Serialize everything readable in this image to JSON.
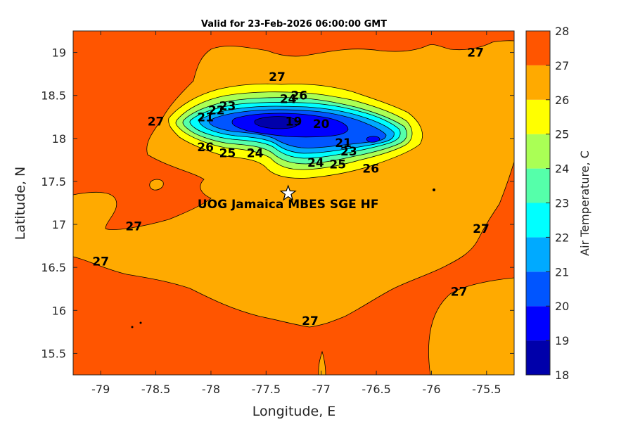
{
  "chart_data": {
    "type": "heatmap",
    "subtype": "filled-contour map",
    "title": "Valid for 23-Feb-2026 06:00:00 GMT",
    "xlabel": "Longitude, E",
    "ylabel": "Latitude, N",
    "xlim": [
      -79.25,
      -75.25
    ],
    "ylim": [
      15.25,
      19.25
    ],
    "x_ticks": [
      -79,
      -78.5,
      -78,
      -77.5,
      -77,
      -76.5,
      -76,
      -75.5
    ],
    "x_tick_labels": [
      "-79",
      "-78.5",
      "-78",
      "-77.5",
      "-77",
      "-76.5",
      "-76",
      "-75.5"
    ],
    "y_ticks": [
      15.5,
      16,
      16.5,
      17,
      17.5,
      18,
      18.5,
      19
    ],
    "y_tick_labels": [
      "15.5",
      "16",
      "16.5",
      "17",
      "17.5",
      "18",
      "18.5",
      "19"
    ],
    "colorbar": {
      "label": "Air Temperature, C",
      "levels": [
        18,
        19,
        20,
        21,
        22,
        23,
        24,
        25,
        26,
        27,
        28
      ],
      "tick_labels": [
        "18",
        "19",
        "20",
        "21",
        "22",
        "23",
        "24",
        "25",
        "26",
        "27",
        "28"
      ],
      "colors": [
        "#0000aa",
        "#0000ff",
        "#0055ff",
        "#00aaff",
        "#00ffff",
        "#55ffaa",
        "#aaff55",
        "#ffff00",
        "#ffaa00",
        "#ff5500",
        "#ff0000"
      ]
    },
    "station": {
      "label": "UOG Jamaica MBES SGE HF",
      "lon": -77.3,
      "lat": 17.36,
      "marker": "star"
    },
    "contour_labels": [
      {
        "text": "27",
        "lon": -77.4,
        "lat": 18.72
      },
      {
        "text": "27",
        "lon": -75.6,
        "lat": 19.0
      },
      {
        "text": "27",
        "lon": -78.5,
        "lat": 18.2
      },
      {
        "text": "27",
        "lon": -78.7,
        "lat": 16.98
      },
      {
        "text": "27",
        "lon": -79.0,
        "lat": 16.57
      },
      {
        "text": "27",
        "lon": -75.55,
        "lat": 16.95
      },
      {
        "text": "27",
        "lon": -75.75,
        "lat": 16.22
      },
      {
        "text": "27",
        "lon": -77.1,
        "lat": 15.88
      },
      {
        "text": "26",
        "lon": -78.05,
        "lat": 17.9
      },
      {
        "text": "26",
        "lon": -77.2,
        "lat": 18.5
      },
      {
        "text": "26",
        "lon": -76.55,
        "lat": 17.65
      },
      {
        "text": "25",
        "lon": -77.85,
        "lat": 17.83
      },
      {
        "text": "25",
        "lon": -76.85,
        "lat": 17.7
      },
      {
        "text": "24",
        "lon": -77.6,
        "lat": 17.83
      },
      {
        "text": "24",
        "lon": -77.3,
        "lat": 18.46
      },
      {
        "text": "24",
        "lon": -77.05,
        "lat": 17.72
      },
      {
        "text": "23",
        "lon": -77.85,
        "lat": 18.38
      },
      {
        "text": "23",
        "lon": -76.75,
        "lat": 17.85
      },
      {
        "text": "22",
        "lon": -77.95,
        "lat": 18.33
      },
      {
        "text": "21",
        "lon": -78.05,
        "lat": 18.25
      },
      {
        "text": "21",
        "lon": -76.8,
        "lat": 17.95
      },
      {
        "text": "20",
        "lon": -77.0,
        "lat": 18.17
      },
      {
        "text": "19",
        "lon": -77.25,
        "lat": 18.2
      }
    ],
    "regions": [
      {
        "level": 27,
        "desc": "ocean background 27-28 C"
      },
      {
        "level": 26,
        "desc": "large 26-27 C area south and around Jamaica"
      },
      {
        "level": 25,
        "desc": "coastal band 25-26 C"
      },
      {
        "level": 18,
        "desc": "interior minimum near -77.5 E, 18.2 N, 18-19 C"
      }
    ]
  }
}
